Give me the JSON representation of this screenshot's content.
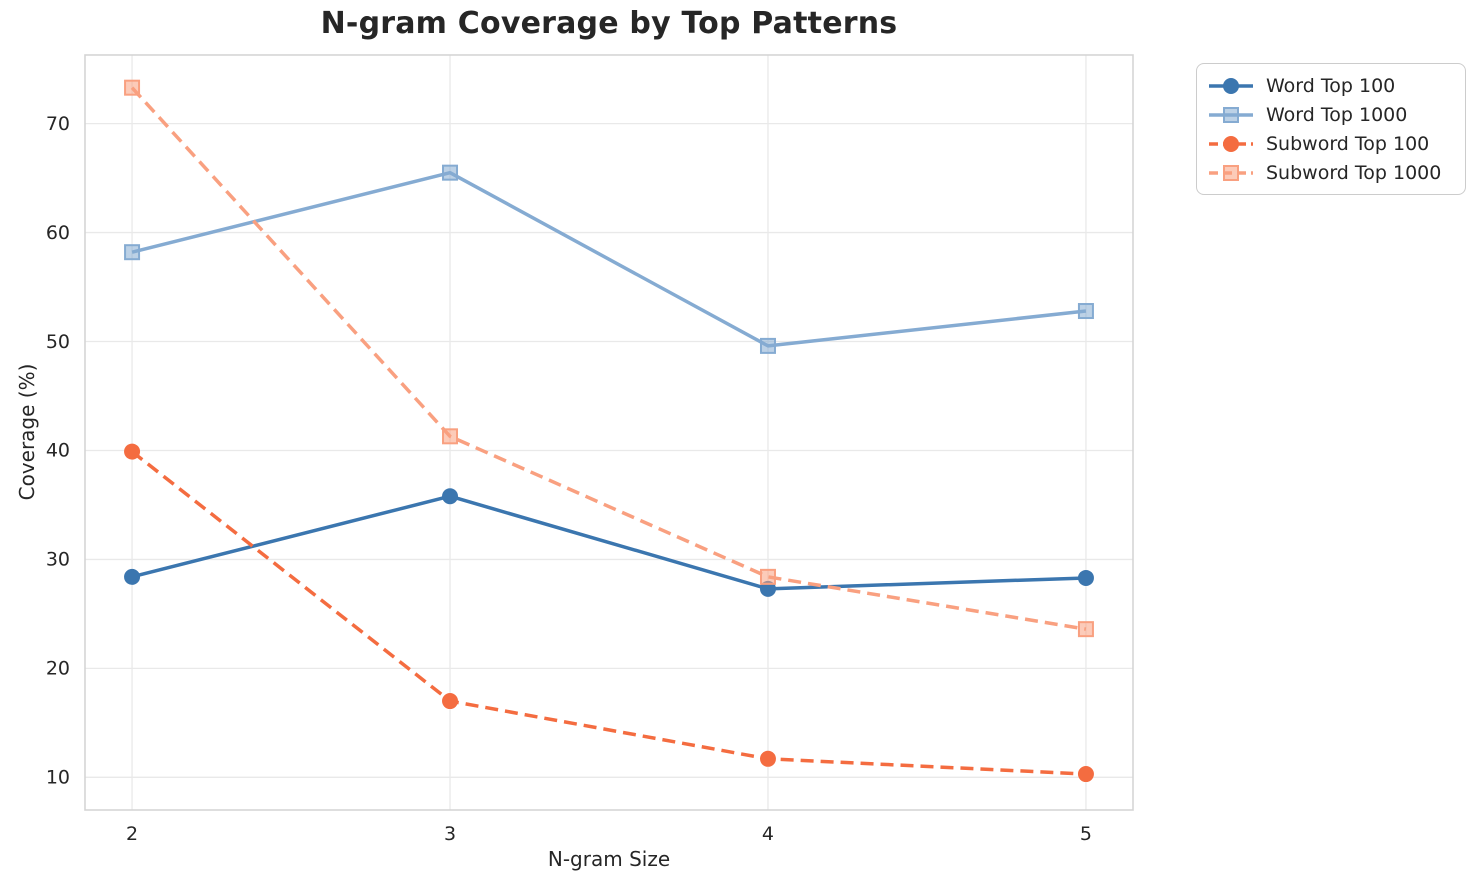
{
  "chart_data": {
    "type": "line",
    "title": "N-gram Coverage by Top Patterns",
    "xlabel": "N-gram Size",
    "ylabel": "Coverage (%)",
    "x": [
      2,
      3,
      4,
      5
    ],
    "xticks": [
      "2",
      "3",
      "4",
      "5"
    ],
    "yticks": [
      10,
      20,
      30,
      40,
      50,
      60,
      70
    ],
    "xlim": [
      1.852,
      5.148
    ],
    "ylim": [
      7.0,
      76.3
    ],
    "grid": true,
    "legend_position": "outside upper right",
    "series": [
      {
        "name": "Word Top 100",
        "color": "#3b76af",
        "marker": "circle",
        "line_style": "solid",
        "values": [
          28.4,
          35.8,
          27.3,
          28.3
        ]
      },
      {
        "name": "Word Top 1000",
        "color": "#85abd2",
        "marker": "square",
        "line_style": "solid",
        "values": [
          58.2,
          65.5,
          49.6,
          52.8
        ]
      },
      {
        "name": "Subword Top 100",
        "color": "#f46c40",
        "marker": "circle",
        "line_style": "dashed",
        "values": [
          39.9,
          17.0,
          11.7,
          10.3
        ]
      },
      {
        "name": "Subword Top 1000",
        "color": "#f9a080",
        "marker": "square",
        "line_style": "dashed",
        "values": [
          73.3,
          41.3,
          28.4,
          23.6
        ]
      }
    ],
    "colors": {
      "grid": "#e9e9e9",
      "spine": "#d5d5d5",
      "text": "#262626",
      "background": "#ffffff",
      "legend_border": "#cccccc"
    }
  }
}
